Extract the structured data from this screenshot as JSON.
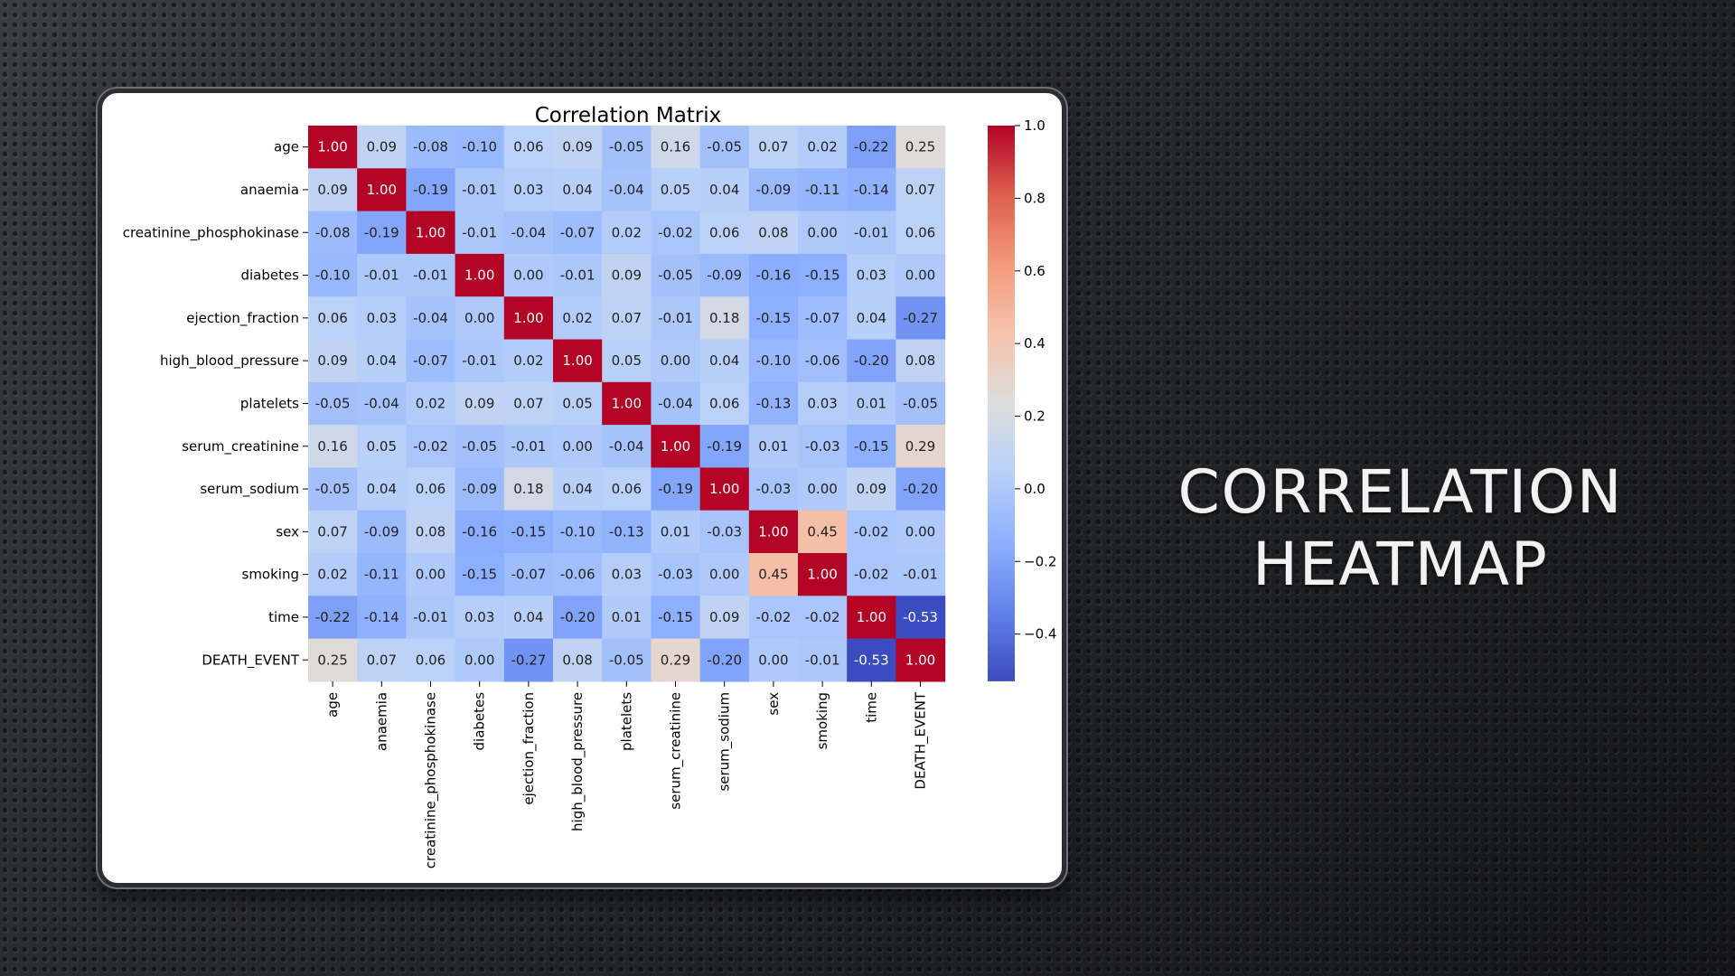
{
  "slide": {
    "title_line1": "CORRELATION",
    "title_line2": "HEATMAP"
  },
  "chart_data": {
    "type": "heatmap",
    "title": "Correlation Matrix",
    "variables": [
      "age",
      "anaemia",
      "creatinine_phosphokinase",
      "diabetes",
      "ejection_fraction",
      "high_blood_pressure",
      "platelets",
      "serum_creatinine",
      "serum_sodium",
      "sex",
      "smoking",
      "time",
      "DEATH_EVENT"
    ],
    "values": [
      [
        1.0,
        0.09,
        -0.08,
        -0.1,
        0.06,
        0.09,
        -0.05,
        0.16,
        -0.05,
        0.07,
        0.02,
        -0.22,
        0.25
      ],
      [
        0.09,
        1.0,
        -0.19,
        -0.01,
        0.03,
        0.04,
        -0.04,
        0.05,
        0.04,
        -0.09,
        -0.11,
        -0.14,
        0.07
      ],
      [
        -0.08,
        -0.19,
        1.0,
        -0.01,
        -0.04,
        -0.07,
        0.02,
        -0.02,
        0.06,
        0.08,
        0.0,
        -0.01,
        0.06
      ],
      [
        -0.1,
        -0.01,
        -0.01,
        1.0,
        -0.0,
        -0.01,
        0.09,
        -0.05,
        -0.09,
        -0.16,
        -0.15,
        0.03,
        -0.0
      ],
      [
        0.06,
        0.03,
        -0.04,
        -0.0,
        1.0,
        0.02,
        0.07,
        -0.01,
        0.18,
        -0.15,
        -0.07,
        0.04,
        -0.27
      ],
      [
        0.09,
        0.04,
        -0.07,
        -0.01,
        0.02,
        1.0,
        0.05,
        -0.0,
        0.04,
        -0.1,
        -0.06,
        -0.2,
        0.08
      ],
      [
        -0.05,
        -0.04,
        0.02,
        0.09,
        0.07,
        0.05,
        1.0,
        -0.04,
        0.06,
        -0.13,
        0.03,
        0.01,
        -0.05
      ],
      [
        0.16,
        0.05,
        -0.02,
        -0.05,
        -0.01,
        -0.0,
        -0.04,
        1.0,
        -0.19,
        0.01,
        -0.03,
        -0.15,
        0.29
      ],
      [
        -0.05,
        0.04,
        0.06,
        -0.09,
        0.18,
        0.04,
        0.06,
        -0.19,
        1.0,
        -0.03,
        0.0,
        0.09,
        -0.2
      ],
      [
        0.07,
        -0.09,
        0.08,
        -0.16,
        -0.15,
        -0.1,
        -0.13,
        0.01,
        -0.03,
        1.0,
        0.45,
        -0.02,
        -0.0
      ],
      [
        0.02,
        -0.11,
        0.0,
        -0.15,
        -0.07,
        -0.06,
        0.03,
        -0.03,
        0.0,
        0.45,
        1.0,
        -0.02,
        -0.01
      ],
      [
        -0.22,
        -0.14,
        -0.01,
        0.03,
        0.04,
        -0.2,
        0.01,
        -0.15,
        0.09,
        -0.02,
        -0.02,
        1.0,
        -0.53
      ],
      [
        0.25,
        0.07,
        0.06,
        -0.0,
        -0.27,
        0.08,
        -0.05,
        0.29,
        -0.2,
        -0.0,
        -0.01,
        -0.53,
        1.0
      ]
    ],
    "colormap": "coolwarm",
    "vmin": -0.53,
    "vmax": 1.0,
    "colorbar_ticks": [
      1.0,
      0.8,
      0.6,
      0.4,
      0.2,
      0.0,
      -0.2,
      -0.4
    ],
    "colorbar_tick_labels": [
      "1.0",
      "0.8",
      "0.6",
      "0.4",
      "0.2",
      "0.0",
      "−0.2",
      "−0.4"
    ],
    "annotation_format": "0.00",
    "x_tick_rotation": "vertical",
    "colors": {
      "low": "#3b4cc0",
      "mid": "#dddcdc",
      "high": "#b40426"
    }
  }
}
